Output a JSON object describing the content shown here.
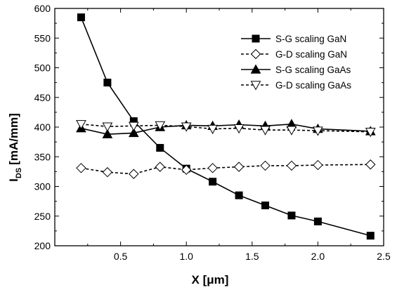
{
  "chart_data": {
    "type": "line",
    "title": "",
    "xlabel": "X [μm]",
    "ylabel": "I_DS [mA/mm]",
    "ylabel_main": "I",
    "ylabel_sub": "DS",
    "ylabel_unit": "[mA/mm]",
    "xlim": [
      0,
      2.5
    ],
    "ylim": [
      200,
      600
    ],
    "xticks": [
      0.5,
      1.0,
      1.5,
      2.0,
      2.5
    ],
    "xtick_labels": [
      "0.5",
      "1.0",
      "1.5",
      "2.0",
      "2.5"
    ],
    "yticks": [
      200,
      250,
      300,
      350,
      400,
      450,
      500,
      550,
      600
    ],
    "ytick_labels": [
      "200",
      "250",
      "300",
      "350",
      "400",
      "450",
      "500",
      "550",
      "600"
    ],
    "grid": false,
    "legend_position": "top-right",
    "series": [
      {
        "name": "S-G scaling GaN",
        "marker": "square-filled",
        "line": "solid",
        "x": [
          0.2,
          0.4,
          0.6,
          0.8,
          1.0,
          1.2,
          1.4,
          1.6,
          1.8,
          2.0,
          2.4
        ],
        "values": [
          585,
          475,
          410,
          365,
          330,
          308,
          285,
          268,
          251,
          241,
          217
        ]
      },
      {
        "name": "G-D scaling GaN",
        "marker": "diamond-open",
        "line": "dashed",
        "x": [
          0.2,
          0.4,
          0.6,
          0.8,
          1.0,
          1.2,
          1.4,
          1.6,
          1.8,
          2.0,
          2.4
        ],
        "values": [
          331,
          324,
          321,
          333,
          328,
          331,
          333,
          335,
          335,
          336,
          337
        ]
      },
      {
        "name": "S-G scaling GaAs",
        "marker": "triangle-up-filled",
        "line": "solid",
        "x": [
          0.2,
          0.4,
          0.6,
          0.8,
          1.0,
          1.2,
          1.4,
          1.6,
          1.8,
          2.0,
          2.4
        ],
        "values": [
          398,
          388,
          390,
          400,
          403,
          402,
          404,
          402,
          405,
          397,
          393
        ]
      },
      {
        "name": "G-D scaling GaAs",
        "marker": "triangle-down-open",
        "line": "dashed",
        "x": [
          0.2,
          0.4,
          0.6,
          0.8,
          1.0,
          1.2,
          1.4,
          1.6,
          1.8,
          2.0,
          2.4
        ],
        "values": [
          405,
          401,
          402,
          403,
          401,
          397,
          398,
          395,
          395,
          394,
          392
        ]
      }
    ]
  }
}
